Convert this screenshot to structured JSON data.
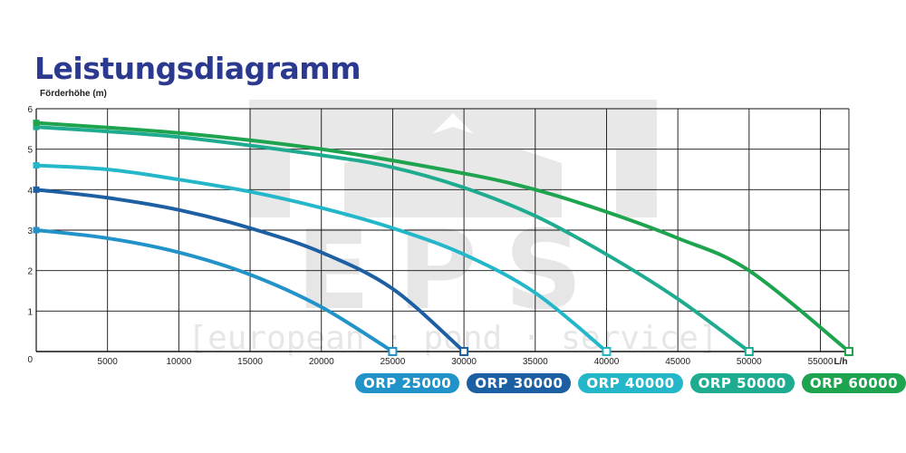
{
  "watermark": {
    "brand": "EPS",
    "tagline": "[european · pond · service]"
  },
  "chart_data": {
    "type": "line",
    "title": "Leistungsdiagramm",
    "ylabel": "Förderhöhe (m)",
    "xlabel": "L/h",
    "xlim": [
      0,
      57000
    ],
    "ylim": [
      0,
      6
    ],
    "x_ticks": [
      5000,
      10000,
      15000,
      20000,
      25000,
      30000,
      35000,
      40000,
      45000,
      50000,
      55000
    ],
    "y_ticks": [
      0,
      1,
      2,
      3,
      4,
      5,
      6
    ],
    "grid": true,
    "legend_position": "bottom-right",
    "series": [
      {
        "name": "ORP 25000",
        "color": "#2293c9",
        "x": [
          0,
          5000,
          10000,
          15000,
          20000,
          25000
        ],
        "y": [
          3.0,
          2.8,
          2.45,
          1.9,
          1.1,
          0.0
        ]
      },
      {
        "name": "ORP 30000",
        "color": "#1d5fa3",
        "x": [
          0,
          5000,
          10000,
          15000,
          20000,
          25000,
          30000
        ],
        "y": [
          4.0,
          3.8,
          3.5,
          3.05,
          2.45,
          1.55,
          0.0
        ]
      },
      {
        "name": "ORP 40000",
        "color": "#23b7c9",
        "x": [
          0,
          5000,
          10000,
          15000,
          20000,
          25000,
          30000,
          35000,
          40000
        ],
        "y": [
          4.6,
          4.5,
          4.25,
          3.95,
          3.55,
          3.05,
          2.4,
          1.45,
          0.0
        ]
      },
      {
        "name": "ORP 50000",
        "color": "#1eab8f",
        "x": [
          0,
          10000,
          20000,
          25000,
          30000,
          35000,
          40000,
          45000,
          50000
        ],
        "y": [
          5.55,
          5.3,
          4.85,
          4.55,
          4.05,
          3.35,
          2.4,
          1.3,
          0.0
        ]
      },
      {
        "name": "ORP 60000",
        "color": "#1ea34f",
        "x": [
          0,
          10000,
          20000,
          30000,
          35000,
          40000,
          45000,
          50000,
          57000
        ],
        "y": [
          5.65,
          5.4,
          5.0,
          4.4,
          4.0,
          3.45,
          2.8,
          2.0,
          0.0
        ]
      }
    ]
  }
}
